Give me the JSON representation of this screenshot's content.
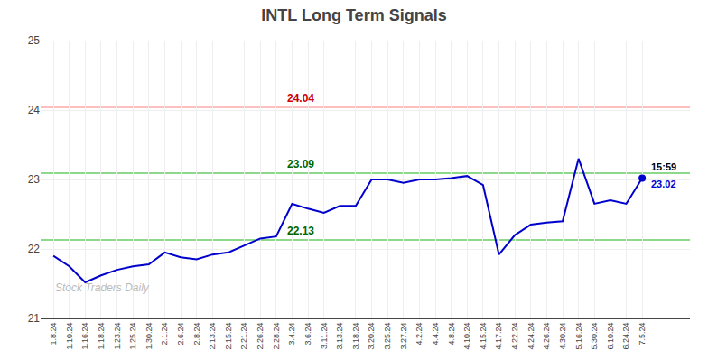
{
  "chart_data": {
    "type": "line",
    "title": "INTL Long Term Signals",
    "categories": [
      "1.8.24",
      "1.10.24",
      "1.16.24",
      "1.18.24",
      "1.23.24",
      "1.25.24",
      "1.30.24",
      "2.1.24",
      "2.6.24",
      "2.8.24",
      "2.13.24",
      "2.15.24",
      "2.21.24",
      "2.26.24",
      "2.28.24",
      "3.4.24",
      "3.6.24",
      "3.11.24",
      "3.13.24",
      "3.18.24",
      "3.20.24",
      "3.25.24",
      "3.27.24",
      "4.2.24",
      "4.4.24",
      "4.8.24",
      "4.10.24",
      "4.15.24",
      "4.17.24",
      "4.22.24",
      "4.24.24",
      "4.26.24",
      "4.30.24",
      "5.16.24",
      "5.30.24",
      "6.10.24",
      "6.24.24",
      "7.5.24"
    ],
    "series": [
      {
        "color": "#0000cc",
        "values": [
          21.9,
          21.75,
          21.52,
          21.62,
          21.7,
          21.75,
          21.78,
          21.95,
          21.88,
          21.85,
          21.92,
          21.95,
          22.05,
          22.15,
          22.18,
          22.65,
          22.58,
          22.52,
          22.62,
          22.62,
          23.0,
          23.0,
          22.95,
          23.0,
          23.0,
          23.02,
          23.05,
          22.92,
          21.92,
          22.2,
          22.35,
          22.38,
          22.4,
          23.3,
          22.65,
          22.7,
          22.65,
          23.02
        ]
      }
    ],
    "ylim": [
      21,
      25
    ],
    "yticks": [
      21,
      22,
      23,
      24,
      25
    ],
    "grid": true,
    "hlines": [
      {
        "value": 24.04,
        "label": "24.04",
        "color": "#ffaaaa",
        "label_color": "#cc0000"
      },
      {
        "value": 23.09,
        "label": "23.09",
        "color": "#66cc66",
        "label_color": "#006600"
      },
      {
        "value": 22.13,
        "label": "22.13",
        "color": "#66cc66",
        "label_color": "#006600"
      }
    ],
    "last_point": {
      "time": "15:59",
      "price": 23.02,
      "time_color": "#000000"
    },
    "watermark": "Stock Traders Daily"
  }
}
